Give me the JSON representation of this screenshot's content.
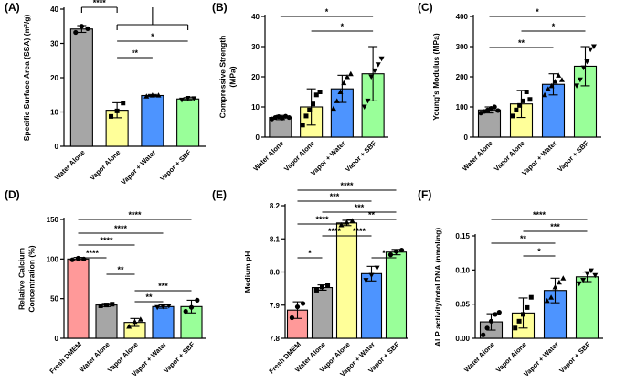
{
  "figure": {
    "colors": {
      "Water Alone": "#a6a6a6",
      "Vapor Alone": "#ffff99",
      "Vapor + Water": "#4d94ff",
      "Vapor + SBF": "#99ff99",
      "Fresh DMEM": "#ff9999"
    }
  },
  "chart_data": [
    {
      "id": "A",
      "panel_label": "(A)",
      "type": "bar",
      "ylabel": [
        "Specific Surface Area (SSA) (m²/g)"
      ],
      "ylim": [
        0,
        40
      ],
      "yticks": [
        "0",
        "10",
        "20",
        "30",
        "40"
      ],
      "ytick_values": [
        0,
        10,
        20,
        30,
        40
      ],
      "categories": [
        "Water Alone",
        "Vapor Alone",
        "Vapor + Water",
        "Vapor + SBF"
      ],
      "values": [
        34.2,
        10.5,
        14.8,
        13.8
      ],
      "errors": [
        1.0,
        2.2,
        0.3,
        0.4
      ],
      "points": [
        [
          33.2,
          35.0,
          34.3
        ],
        [
          8.7,
          10.3,
          12.6
        ],
        [
          14.6,
          14.9,
          14.9
        ],
        [
          13.5,
          14.0,
          13.9
        ]
      ],
      "markers": [
        "circle",
        "square",
        "triangle",
        "invtriangle"
      ],
      "sig": [
        {
          "from": 0,
          "to": 1,
          "level": 0,
          "text": "****",
          "bracket": true
        },
        {
          "from": 1,
          "to": 3,
          "level": 1,
          "text": "",
          "bracket": true
        },
        {
          "from": 1,
          "to": 3,
          "level": 2,
          "text": "*",
          "bracket": false
        },
        {
          "from": 1,
          "to": 2,
          "level": 3,
          "text": "**",
          "bracket": false
        }
      ]
    },
    {
      "id": "B",
      "panel_label": "(B)",
      "type": "bar",
      "ylabel": [
        "Compressive Strength",
        "(MPa)"
      ],
      "ylim": [
        0,
        40
      ],
      "yticks": [
        "0",
        "10",
        "20",
        "30",
        "40"
      ],
      "ytick_values": [
        0,
        10,
        20,
        30,
        40
      ],
      "categories": [
        "Water Alone",
        "Vapor Alone",
        "Vapor + Water",
        "Vapor + SBF"
      ],
      "values": [
        6.5,
        10,
        16,
        21
      ],
      "errors": [
        0.7,
        6,
        4.5,
        9
      ],
      "points": [
        [
          6,
          6.5,
          6.8,
          6.3,
          6.9,
          6.5
        ],
        [
          4,
          7,
          9,
          11,
          14,
          15
        ],
        [
          9.5,
          12,
          15,
          18,
          20,
          21
        ],
        [
          10,
          12,
          20,
          22,
          24,
          26
        ]
      ],
      "markers": [
        "circle",
        "square",
        "triangle",
        "invtriangle"
      ],
      "sig": [
        {
          "from": 0,
          "to": 3,
          "level": 0,
          "text": "*",
          "bracket": false
        },
        {
          "from": 1,
          "to": 3,
          "level": 1,
          "text": "*",
          "bracket": false
        }
      ]
    },
    {
      "id": "C",
      "panel_label": "(C)",
      "type": "bar",
      "ylabel": [
        "Young's Modulus (MPa)"
      ],
      "ylim": [
        0,
        400
      ],
      "yticks": [
        "0",
        "100",
        "200",
        "300",
        "400"
      ],
      "ytick_values": [
        0,
        100,
        200,
        300,
        400
      ],
      "categories": [
        "Water Alone",
        "Vapor Alone",
        "Vapor + Water",
        "Vapor + SBF"
      ],
      "values": [
        90,
        110,
        175,
        235
      ],
      "errors": [
        10,
        45,
        35,
        65
      ],
      "points": [
        [
          80,
          85,
          90,
          95,
          100,
          88
        ],
        [
          70,
          90,
          105,
          120,
          150,
          125
        ],
        [
          140,
          160,
          170,
          185,
          205,
          190
        ],
        [
          170,
          190,
          230,
          250,
          290,
          300
        ]
      ],
      "markers": [
        "circle",
        "square",
        "triangle",
        "invtriangle"
      ],
      "sig": [
        {
          "from": 0,
          "to": 3,
          "level": 0,
          "text": "*",
          "bracket": false
        },
        {
          "from": 1,
          "to": 3,
          "level": 1,
          "text": "*",
          "bracket": false
        },
        {
          "from": 0,
          "to": 2,
          "level": 2,
          "text": "**",
          "bracket": false
        }
      ]
    },
    {
      "id": "D",
      "panel_label": "(D)",
      "type": "bar",
      "ylabel": [
        "Relative Calcium",
        "Concentration (%)"
      ],
      "ylim": [
        0,
        150
      ],
      "yticks": [
        "0",
        "50",
        "100",
        "150"
      ],
      "ytick_values": [
        0,
        50,
        100,
        150
      ],
      "categories": [
        "Fresh DMEM",
        "Water Alone",
        "Vapor Alone",
        "Vapor + Water",
        "Vapor + SBF"
      ],
      "values": [
        100,
        42,
        20,
        40,
        40
      ],
      "errors": [
        2,
        2,
        5,
        2,
        8
      ],
      "points": [
        [
          99,
          101,
          100
        ],
        [
          41,
          42,
          43
        ],
        [
          15,
          21,
          24
        ],
        [
          39,
          40,
          41
        ],
        [
          34,
          39,
          48
        ]
      ],
      "markers": [
        "circle",
        "square",
        "triangle",
        "invtriangle",
        "circle"
      ],
      "sig": [
        {
          "from": 0,
          "to": 4,
          "level": 0,
          "text": "****",
          "bracket": false
        },
        {
          "from": 0,
          "to": 3,
          "level": 1,
          "text": "****",
          "bracket": false
        },
        {
          "from": 0,
          "to": 2,
          "level": 2,
          "text": "****",
          "bracket": false
        },
        {
          "from": 0,
          "to": 1,
          "level": 3,
          "text": "****",
          "bracket": false
        },
        {
          "from": 1,
          "to": 2,
          "level": 4,
          "text": "**",
          "bracket": false
        },
        {
          "from": 2,
          "to": 4,
          "level": 5,
          "text": "***",
          "bracket": false
        },
        {
          "from": 2,
          "to": 3,
          "level": 6,
          "text": "**",
          "bracket": false
        }
      ]
    },
    {
      "id": "E",
      "panel_label": "(E)",
      "type": "bar",
      "ylabel": [
        "Medium pH"
      ],
      "ylim": [
        7.8,
        8.2
      ],
      "yticks": [
        "7.8",
        "7.9",
        "8.0",
        "8.1",
        "8.2"
      ],
      "ytick_values": [
        7.8,
        7.9,
        8.0,
        8.1,
        8.2
      ],
      "categories": [
        "Fresh DMEM",
        "Water Alone",
        "Vapor Alone",
        "Vapor + Water",
        "Vapor + SBF"
      ],
      "values": [
        7.885,
        7.953,
        8.148,
        7.995,
        8.06
      ],
      "errors": [
        0.025,
        0.008,
        0.008,
        0.022,
        0.008
      ],
      "points": [
        [
          7.862,
          7.895,
          7.905
        ],
        [
          7.945,
          7.955,
          7.96
        ],
        [
          8.142,
          8.15,
          8.155
        ],
        [
          7.975,
          7.99,
          8.012
        ],
        [
          8.052,
          8.062,
          8.066
        ]
      ],
      "markers": [
        "circle",
        "square",
        "triangle",
        "invtriangle",
        "circle"
      ],
      "sig": [
        {
          "from": 0,
          "to": 4,
          "level": 0,
          "text": "****",
          "bracket": false
        },
        {
          "from": 0,
          "to": 3,
          "level": 1,
          "text": "***",
          "bracket": false
        },
        {
          "from": 1,
          "to": 4,
          "level": 2,
          "text": "***",
          "bracket": false
        },
        {
          "from": 0,
          "to": 2,
          "level": 3,
          "text": "****",
          "bracket": false
        },
        {
          "from": 2,
          "to": 4,
          "level": 4,
          "text": "**",
          "bracket": false
        },
        {
          "from": 1,
          "to": 2,
          "level": 5,
          "text": "****",
          "bracket": false
        },
        {
          "from": 2,
          "to": 3,
          "level": 6,
          "text": "****",
          "bracket": false
        },
        {
          "from": 0,
          "to": 1,
          "level": 7,
          "text": "*",
          "bracket": false
        },
        {
          "from": 3,
          "to": 4,
          "level": 8,
          "text": "*",
          "bracket": false
        }
      ]
    },
    {
      "id": "F",
      "panel_label": "(F)",
      "type": "bar",
      "ylabel": [
        "ALP activity/total DNA (nmol/ng)"
      ],
      "ylim": [
        0,
        0.15
      ],
      "yticks": [
        "0.00",
        "0.05",
        "0.10",
        "0.15"
      ],
      "ytick_values": [
        0,
        0.05,
        0.1,
        0.15
      ],
      "categories": [
        "Water Alone",
        "Vapor Alone",
        "Vapor + Water",
        "Vapor + SBF"
      ],
      "values": [
        0.024,
        0.037,
        0.07,
        0.09
      ],
      "errors": [
        0.012,
        0.022,
        0.018,
        0.007
      ],
      "points": [
        [
          0.005,
          0.015,
          0.025,
          0.035,
          0.038
        ],
        [
          0.015,
          0.025,
          0.035,
          0.045,
          0.06
        ],
        [
          0.055,
          0.06,
          0.075,
          0.082,
          0.088
        ],
        [
          0.08,
          0.085,
          0.095,
          0.099,
          0.092
        ]
      ],
      "markers": [
        "circle",
        "square",
        "triangle",
        "invtriangle"
      ],
      "sig": [
        {
          "from": 0,
          "to": 3,
          "level": 0,
          "text": "****",
          "bracket": false
        },
        {
          "from": 1,
          "to": 3,
          "level": 1,
          "text": "***",
          "bracket": false
        },
        {
          "from": 0,
          "to": 2,
          "level": 2,
          "text": "**",
          "bracket": false
        },
        {
          "from": 1,
          "to": 2,
          "level": 3,
          "text": "*",
          "bracket": false
        }
      ]
    }
  ]
}
